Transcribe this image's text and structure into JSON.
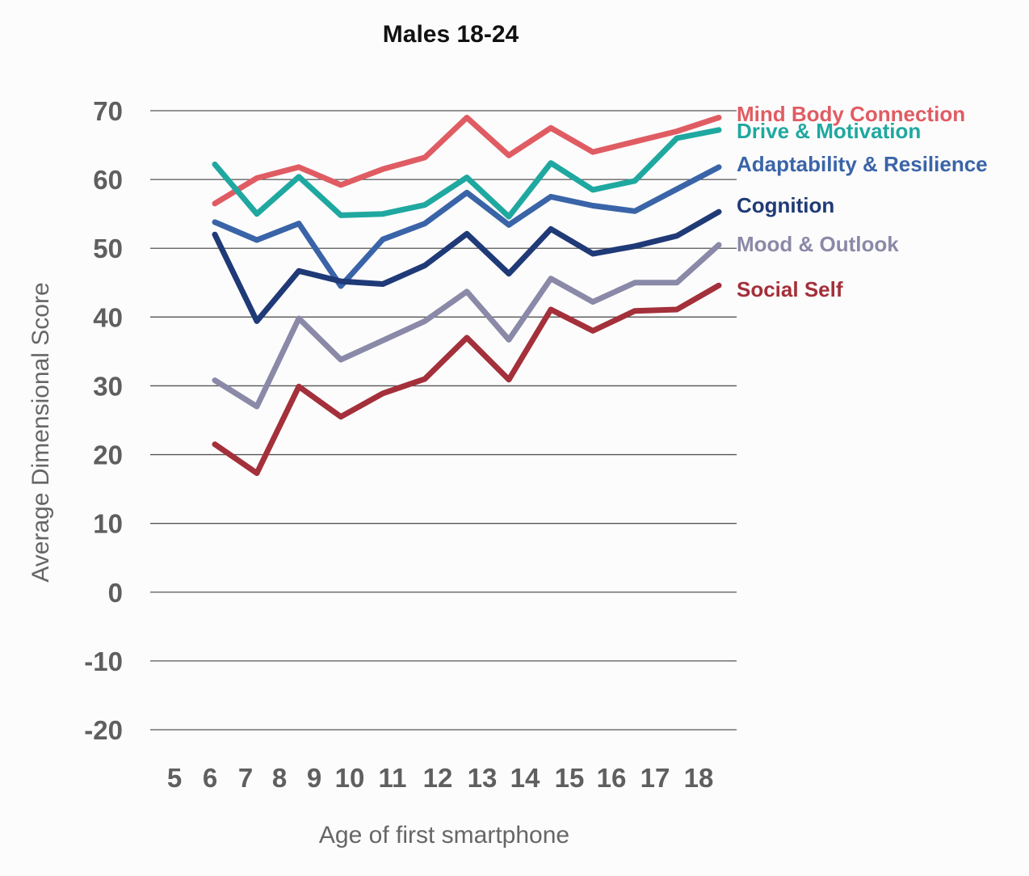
{
  "chart_data": {
    "type": "line",
    "title": "Males 18-24",
    "xlabel": "Age of first smartphone",
    "ylabel": "Average Dimensional Score",
    "ylim": [
      -20,
      70
    ],
    "y_ticks": [
      "-20",
      "-10",
      "0",
      "10",
      "20",
      "30",
      "40",
      "50",
      "60",
      "70"
    ],
    "x_ticks": [
      "5",
      "6",
      "7",
      "8",
      "9",
      "10",
      "11",
      "12",
      "13",
      "14",
      "15",
      "16",
      "17",
      "18"
    ],
    "grid": true,
    "legend_position": "right, at line ends",
    "x": [
      6,
      7,
      8,
      9,
      10,
      11,
      12,
      13,
      14,
      15,
      16,
      17,
      18
    ],
    "series": [
      {
        "name": "Mind Body Connection",
        "color": "#e05c63",
        "values": [
          56.5,
          60.2,
          61.8,
          59.2,
          61.5,
          63.2,
          69.0,
          63.5,
          67.5,
          64.0,
          65.5,
          67.0,
          69.0
        ]
      },
      {
        "name": "Drive & Motivation",
        "color": "#1fa8a0",
        "values": [
          62.2,
          55.0,
          60.4,
          54.8,
          55.0,
          56.3,
          60.3,
          54.6,
          62.4,
          58.5,
          59.8,
          66.0,
          67.2
        ]
      },
      {
        "name": "Adaptability & Resilience",
        "color": "#3a64a8",
        "values": [
          53.8,
          51.2,
          53.6,
          44.5,
          51.3,
          53.6,
          58.1,
          53.4,
          57.5,
          56.2,
          55.4,
          58.6,
          61.8
        ]
      },
      {
        "name": "Cognition",
        "color": "#1f3a77",
        "values": [
          52.0,
          39.4,
          46.7,
          45.2,
          44.8,
          47.5,
          52.1,
          46.3,
          52.8,
          49.2,
          50.3,
          51.8,
          55.3
        ]
      },
      {
        "name": "Mood & Outlook",
        "color": "#8a89a8",
        "values": [
          30.8,
          27.0,
          39.8,
          33.8,
          36.6,
          39.4,
          43.7,
          36.7,
          45.6,
          42.2,
          45.0,
          45.0,
          50.5
        ]
      },
      {
        "name": "Social Self",
        "color": "#a3303a",
        "values": [
          21.5,
          17.3,
          29.9,
          25.5,
          28.9,
          31.0,
          37.0,
          30.9,
          41.1,
          38.0,
          40.9,
          41.1,
          44.6
        ]
      }
    ]
  }
}
